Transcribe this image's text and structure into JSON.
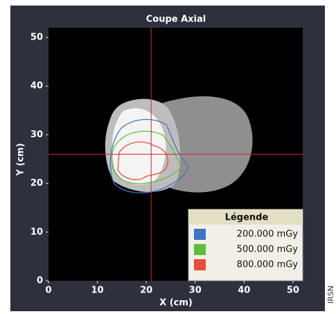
{
  "chart_data": {
    "type": "contour",
    "title": "Coupe Axial",
    "x_label": "X (cm)",
    "y_label": "Y (cm)",
    "xlim": [
      0,
      52
    ],
    "ylim": [
      0,
      52
    ],
    "xticks": [
      0,
      10,
      20,
      30,
      40,
      50
    ],
    "yticks": [
      0,
      10,
      20,
      30,
      40,
      50
    ],
    "crosshair_x": 21,
    "crosshair_y": 26,
    "legend_title": "Légende",
    "legend": "lower right",
    "series": [
      {
        "name": "200.000 mGy",
        "color": "#3d74c8"
      },
      {
        "name": "500.000 mGy",
        "color": "#5cbf3c"
      },
      {
        "name": "800.000 mGy",
        "color": "#e84a3c"
      }
    ]
  },
  "watermark": "IRSN"
}
